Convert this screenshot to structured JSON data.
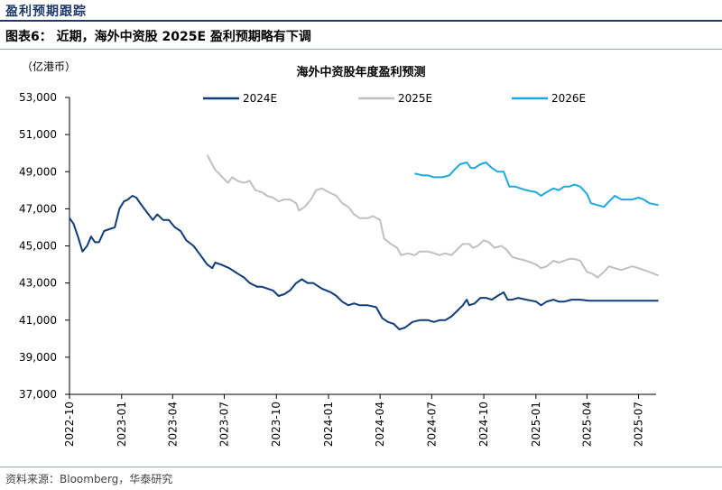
{
  "header": {
    "section_title": "盈利预期跟踪",
    "figure_caption": "图表6： 近期，海外中资股 2025E 盈利预期略有下调"
  },
  "footer": {
    "source": "资料来源：Bloomberg，华泰研究"
  },
  "chart_data": {
    "type": "line",
    "title": "海外中资股年度盈利预测",
    "ylabel": "（亿港币）",
    "ylim": [
      37000,
      53000
    ],
    "yticks": [
      "53,000",
      "51,000",
      "49,000",
      "47,000",
      "45,000",
      "43,000",
      "41,000",
      "39,000",
      "37,000"
    ],
    "xlim": [
      "2022-10",
      "2025-08"
    ],
    "xticks": [
      "2022-10",
      "2023-01",
      "2023-04",
      "2023-07",
      "2023-10",
      "2024-01",
      "2024-04",
      "2024-07",
      "2024-10",
      "2025-01",
      "2025-04",
      "2025-07"
    ],
    "legend_position": "top",
    "series": [
      {
        "name": "2024E",
        "color": "#0e3d7a",
        "points": [
          [
            "2022-10-01",
            46500
          ],
          [
            "2022-10-08",
            46200
          ],
          [
            "2022-10-16",
            45500
          ],
          [
            "2022-10-24",
            44700
          ],
          [
            "2022-11-01",
            45000
          ],
          [
            "2022-11-08",
            45500
          ],
          [
            "2022-11-15",
            45200
          ],
          [
            "2022-11-22",
            45200
          ],
          [
            "2022-12-01",
            45800
          ],
          [
            "2022-12-10",
            45900
          ],
          [
            "2022-12-20",
            46000
          ],
          [
            "2022-12-28",
            47000
          ],
          [
            "2023-01-05",
            47400
          ],
          [
            "2023-01-12",
            47500
          ],
          [
            "2023-01-20",
            47700
          ],
          [
            "2023-01-27",
            47600
          ],
          [
            "2023-02-05",
            47200
          ],
          [
            "2023-02-15",
            46800
          ],
          [
            "2023-02-25",
            46400
          ],
          [
            "2023-03-05",
            46700
          ],
          [
            "2023-03-15",
            46400
          ],
          [
            "2023-03-25",
            46400
          ],
          [
            "2023-04-05",
            46000
          ],
          [
            "2023-04-15",
            45800
          ],
          [
            "2023-04-25",
            45300
          ],
          [
            "2023-05-08",
            45000
          ],
          [
            "2023-05-20",
            44500
          ],
          [
            "2023-06-01",
            44000
          ],
          [
            "2023-06-10",
            43800
          ],
          [
            "2023-06-15",
            44100
          ],
          [
            "2023-06-25",
            44000
          ],
          [
            "2023-07-10",
            43800
          ],
          [
            "2023-07-25",
            43500
          ],
          [
            "2023-08-05",
            43300
          ],
          [
            "2023-08-15",
            43000
          ],
          [
            "2023-08-28",
            42800
          ],
          [
            "2023-09-05",
            42800
          ],
          [
            "2023-09-15",
            42700
          ],
          [
            "2023-09-25",
            42600
          ],
          [
            "2023-10-05",
            42300
          ],
          [
            "2023-10-15",
            42400
          ],
          [
            "2023-10-25",
            42600
          ],
          [
            "2023-11-05",
            43000
          ],
          [
            "2023-11-15",
            43200
          ],
          [
            "2023-11-25",
            43000
          ],
          [
            "2023-12-05",
            43000
          ],
          [
            "2023-12-20",
            42700
          ],
          [
            "2024-01-05",
            42500
          ],
          [
            "2024-01-15",
            42300
          ],
          [
            "2024-01-25",
            42000
          ],
          [
            "2024-02-05",
            41800
          ],
          [
            "2024-02-15",
            41900
          ],
          [
            "2024-02-25",
            41800
          ],
          [
            "2024-03-10",
            41800
          ],
          [
            "2024-03-25",
            41700
          ],
          [
            "2024-04-05",
            41100
          ],
          [
            "2024-04-15",
            40900
          ],
          [
            "2024-04-25",
            40800
          ],
          [
            "2024-05-05",
            40500
          ],
          [
            "2024-05-15",
            40600
          ],
          [
            "2024-05-28",
            40900
          ],
          [
            "2024-06-10",
            41000
          ],
          [
            "2024-06-25",
            41000
          ],
          [
            "2024-07-05",
            40900
          ],
          [
            "2024-07-15",
            41000
          ],
          [
            "2024-07-25",
            41000
          ],
          [
            "2024-08-05",
            41200
          ],
          [
            "2024-08-15",
            41500
          ],
          [
            "2024-08-25",
            41800
          ],
          [
            "2024-09-01",
            42100
          ],
          [
            "2024-09-05",
            41800
          ],
          [
            "2024-09-15",
            41900
          ],
          [
            "2024-09-25",
            42200
          ],
          [
            "2024-10-05",
            42200
          ],
          [
            "2024-10-15",
            42100
          ],
          [
            "2024-10-25",
            42300
          ],
          [
            "2024-11-05",
            42500
          ],
          [
            "2024-11-12",
            42100
          ],
          [
            "2024-11-20",
            42100
          ],
          [
            "2024-12-01",
            42200
          ],
          [
            "2024-12-15",
            42100
          ],
          [
            "2025-01-01",
            42000
          ],
          [
            "2025-01-10",
            41800
          ],
          [
            "2025-01-20",
            42000
          ],
          [
            "2025-02-01",
            42100
          ],
          [
            "2025-02-10",
            42000
          ],
          [
            "2025-02-20",
            42000
          ],
          [
            "2025-03-05",
            42100
          ],
          [
            "2025-03-20",
            42100
          ],
          [
            "2025-04-05",
            42050
          ],
          [
            "2025-05-01",
            42050
          ],
          [
            "2025-06-01",
            42050
          ],
          [
            "2025-07-01",
            42050
          ],
          [
            "2025-08-05",
            42050
          ]
        ]
      },
      {
        "name": "2025E",
        "color": "#c0c0c0",
        "points": [
          [
            "2023-06-01",
            49900
          ],
          [
            "2023-06-08",
            49500
          ],
          [
            "2023-06-15",
            49100
          ],
          [
            "2023-06-22",
            48900
          ],
          [
            "2023-07-01",
            48600
          ],
          [
            "2023-07-08",
            48400
          ],
          [
            "2023-07-15",
            48700
          ],
          [
            "2023-07-25",
            48500
          ],
          [
            "2023-08-05",
            48400
          ],
          [
            "2023-08-15",
            48500
          ],
          [
            "2023-08-25",
            48000
          ],
          [
            "2023-09-05",
            47900
          ],
          [
            "2023-09-15",
            47700
          ],
          [
            "2023-09-25",
            47600
          ],
          [
            "2023-10-05",
            47400
          ],
          [
            "2023-10-15",
            47500
          ],
          [
            "2023-10-25",
            47500
          ],
          [
            "2023-11-05",
            47300
          ],
          [
            "2023-11-10",
            46900
          ],
          [
            "2023-11-20",
            47100
          ],
          [
            "2023-12-01",
            47500
          ],
          [
            "2023-12-10",
            48000
          ],
          [
            "2023-12-20",
            48100
          ],
          [
            "2024-01-01",
            47900
          ],
          [
            "2024-01-15",
            47700
          ],
          [
            "2024-01-25",
            47300
          ],
          [
            "2024-02-05",
            47100
          ],
          [
            "2024-02-15",
            46700
          ],
          [
            "2024-02-25",
            46500
          ],
          [
            "2024-03-10",
            46500
          ],
          [
            "2024-03-20",
            46600
          ],
          [
            "2024-04-01",
            46400
          ],
          [
            "2024-04-08",
            45400
          ],
          [
            "2024-04-20",
            45100
          ],
          [
            "2024-05-01",
            44900
          ],
          [
            "2024-05-08",
            44500
          ],
          [
            "2024-05-20",
            44600
          ],
          [
            "2024-06-01",
            44500
          ],
          [
            "2024-06-10",
            44700
          ],
          [
            "2024-06-25",
            44700
          ],
          [
            "2024-07-05",
            44600
          ],
          [
            "2024-07-15",
            44500
          ],
          [
            "2024-07-25",
            44600
          ],
          [
            "2024-08-05",
            44500
          ],
          [
            "2024-08-15",
            44800
          ],
          [
            "2024-08-25",
            45100
          ],
          [
            "2024-09-05",
            45100
          ],
          [
            "2024-09-12",
            44900
          ],
          [
            "2024-09-20",
            45000
          ],
          [
            "2024-10-01",
            45300
          ],
          [
            "2024-10-10",
            45200
          ],
          [
            "2024-10-20",
            44900
          ],
          [
            "2024-11-01",
            45000
          ],
          [
            "2024-11-10",
            44800
          ],
          [
            "2024-11-20",
            44400
          ],
          [
            "2024-12-01",
            44300
          ],
          [
            "2024-12-15",
            44200
          ],
          [
            "2025-01-01",
            44000
          ],
          [
            "2025-01-10",
            43800
          ],
          [
            "2025-01-20",
            43900
          ],
          [
            "2025-02-01",
            44200
          ],
          [
            "2025-02-10",
            44100
          ],
          [
            "2025-02-20",
            44200
          ],
          [
            "2025-03-01",
            44300
          ],
          [
            "2025-03-10",
            44300
          ],
          [
            "2025-03-20",
            44200
          ],
          [
            "2025-04-01",
            43600
          ],
          [
            "2025-04-10",
            43500
          ],
          [
            "2025-04-20",
            43300
          ],
          [
            "2025-05-01",
            43600
          ],
          [
            "2025-05-10",
            43900
          ],
          [
            "2025-05-20",
            43800
          ],
          [
            "2025-06-01",
            43700
          ],
          [
            "2025-06-10",
            43800
          ],
          [
            "2025-06-20",
            43900
          ],
          [
            "2025-07-01",
            43800
          ],
          [
            "2025-07-10",
            43700
          ],
          [
            "2025-07-20",
            43600
          ],
          [
            "2025-08-05",
            43400
          ]
        ]
      },
      {
        "name": "2026E",
        "color": "#1fa8e0",
        "points": [
          [
            "2024-06-01",
            48900
          ],
          [
            "2024-06-15",
            48800
          ],
          [
            "2024-06-25",
            48800
          ],
          [
            "2024-07-05",
            48700
          ],
          [
            "2024-07-20",
            48700
          ],
          [
            "2024-08-01",
            48800
          ],
          [
            "2024-08-10",
            49100
          ],
          [
            "2024-08-20",
            49400
          ],
          [
            "2024-09-01",
            49500
          ],
          [
            "2024-09-08",
            49200
          ],
          [
            "2024-09-15",
            49200
          ],
          [
            "2024-09-25",
            49400
          ],
          [
            "2024-10-05",
            49500
          ],
          [
            "2024-10-15",
            49200
          ],
          [
            "2024-10-25",
            49000
          ],
          [
            "2024-11-05",
            49000
          ],
          [
            "2024-11-15",
            48200
          ],
          [
            "2024-11-25",
            48200
          ],
          [
            "2024-12-05",
            48100
          ],
          [
            "2024-12-15",
            48000
          ],
          [
            "2025-01-01",
            47900
          ],
          [
            "2025-01-10",
            47700
          ],
          [
            "2025-01-20",
            47900
          ],
          [
            "2025-02-01",
            48100
          ],
          [
            "2025-02-10",
            48000
          ],
          [
            "2025-02-20",
            48200
          ],
          [
            "2025-03-01",
            48200
          ],
          [
            "2025-03-10",
            48300
          ],
          [
            "2025-03-20",
            48200
          ],
          [
            "2025-04-01",
            47800
          ],
          [
            "2025-04-08",
            47300
          ],
          [
            "2025-04-20",
            47200
          ],
          [
            "2025-05-01",
            47100
          ],
          [
            "2025-05-10",
            47400
          ],
          [
            "2025-05-20",
            47700
          ],
          [
            "2025-06-01",
            47500
          ],
          [
            "2025-06-10",
            47500
          ],
          [
            "2025-06-20",
            47500
          ],
          [
            "2025-07-01",
            47600
          ],
          [
            "2025-07-10",
            47500
          ],
          [
            "2025-07-20",
            47300
          ],
          [
            "2025-08-05",
            47200
          ]
        ]
      }
    ]
  }
}
